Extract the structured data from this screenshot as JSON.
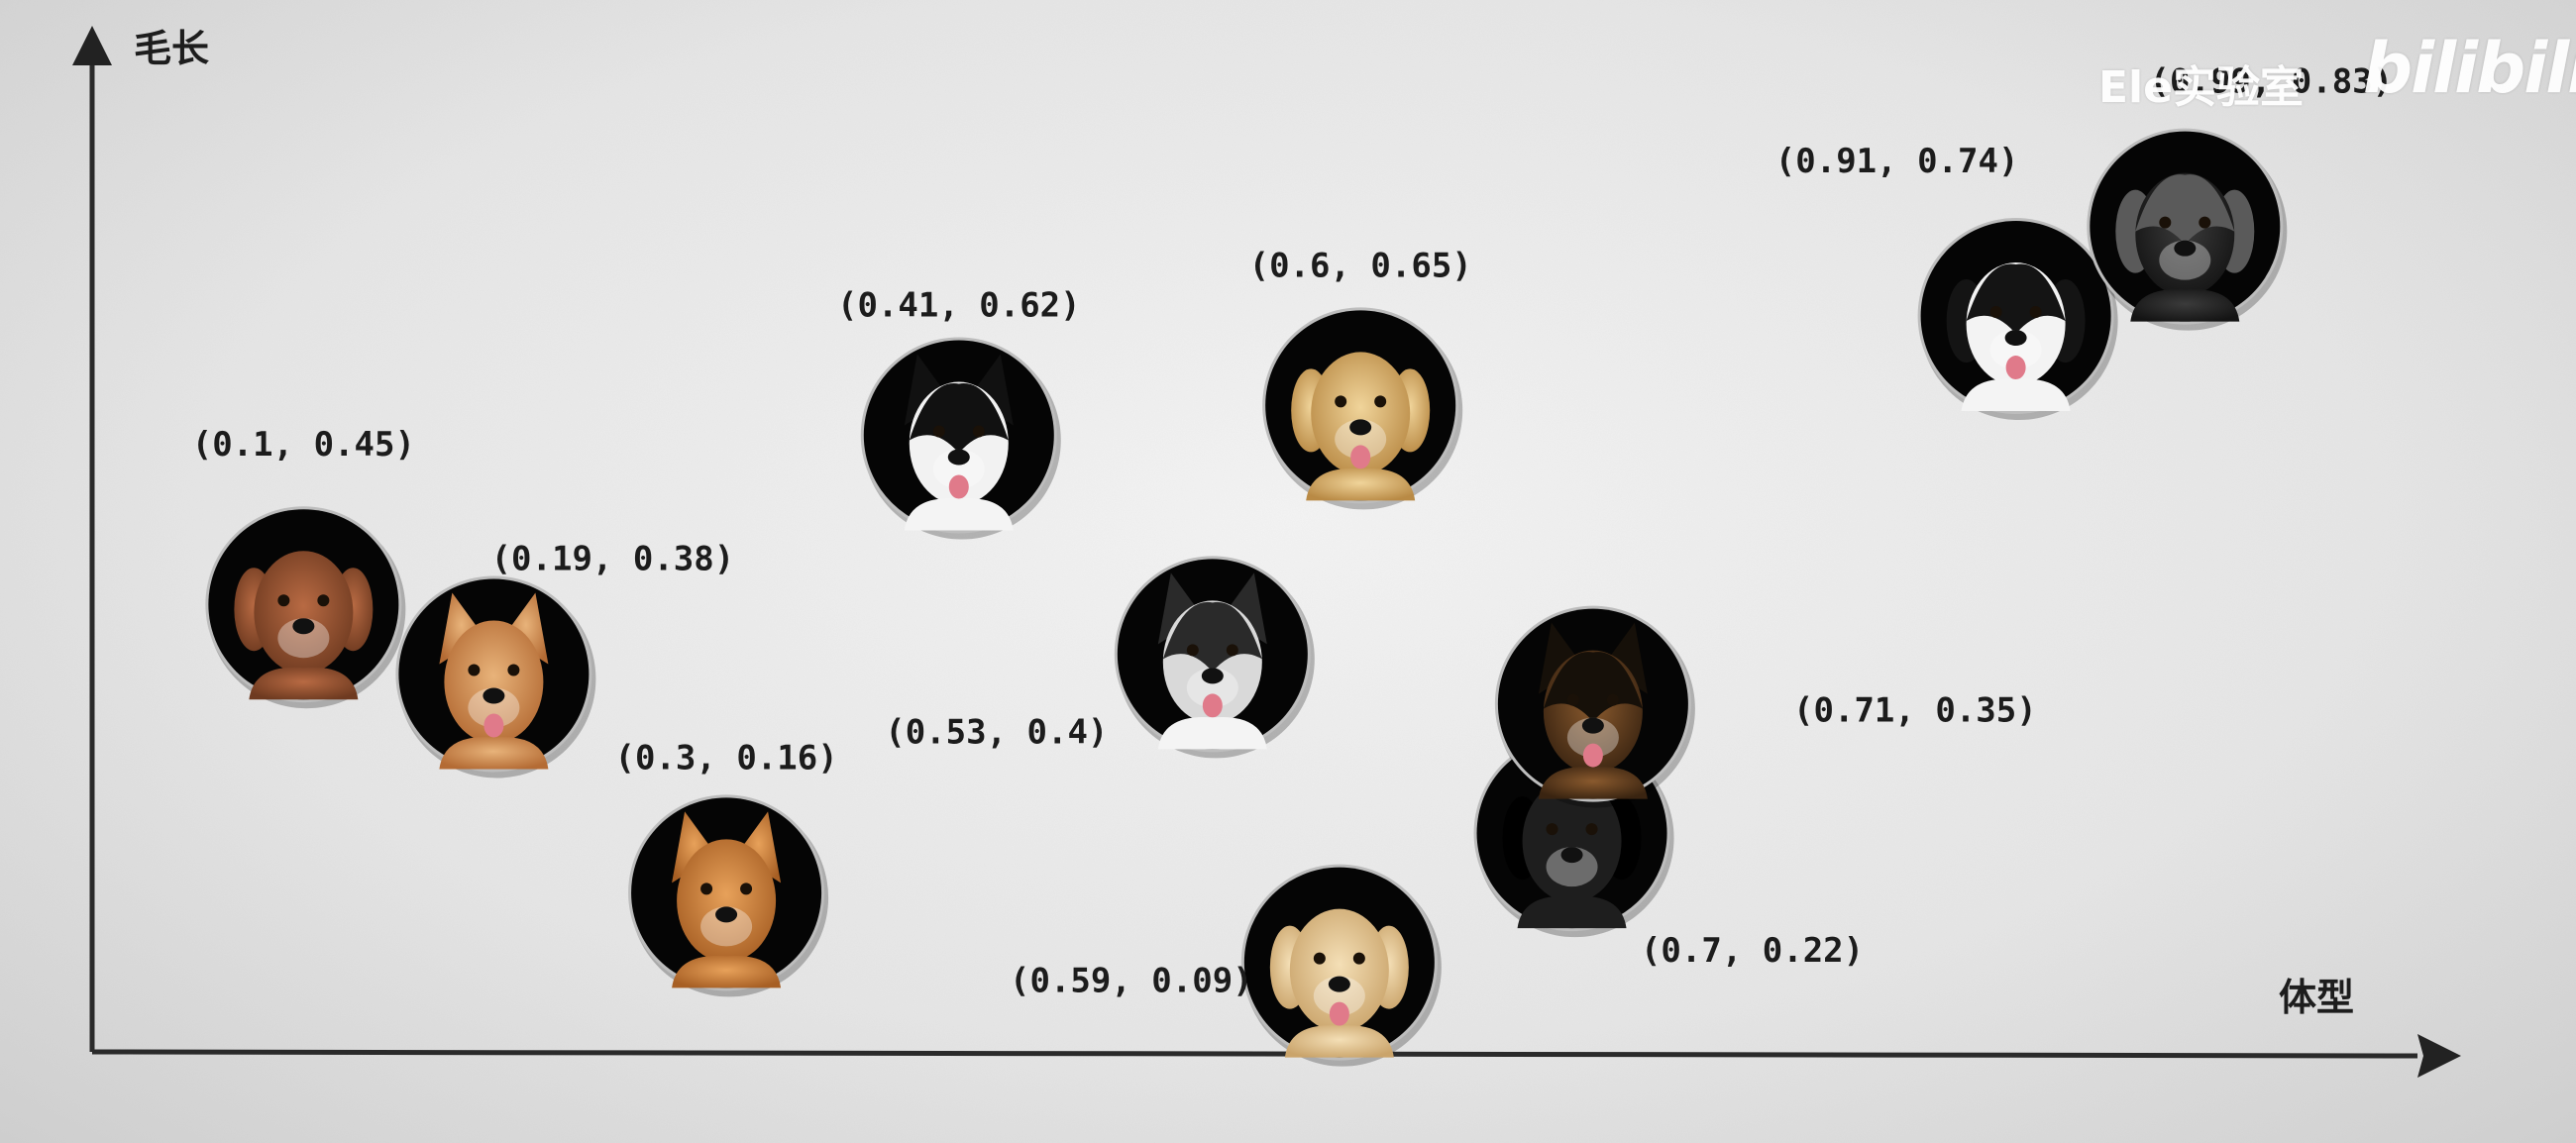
{
  "watermark": {
    "channel": "Ele实验室",
    "brand": "bilibili"
  },
  "chart_data": {
    "type": "scatter",
    "xlabel": "体型",
    "ylabel": "毛长",
    "xlim": [
      0,
      1.1
    ],
    "ylim": [
      0,
      1
    ],
    "grid": false,
    "legend": "none",
    "marker": "circular dog-face photo",
    "points": [
      {
        "x": 0.1,
        "y": 0.45,
        "label": "(0.1, 0.45)",
        "icon": "poodle-face-icon"
      },
      {
        "x": 0.19,
        "y": 0.38,
        "label": "(0.19, 0.38)",
        "icon": "corgi-face-icon"
      },
      {
        "x": 0.3,
        "y": 0.16,
        "label": "(0.3, 0.16)",
        "icon": "shiba-face-icon"
      },
      {
        "x": 0.41,
        "y": 0.62,
        "label": "(0.41, 0.62)",
        "icon": "border-collie-face-icon"
      },
      {
        "x": 0.53,
        "y": 0.4,
        "label": "(0.53, 0.4)",
        "icon": "husky-face-icon"
      },
      {
        "x": 0.59,
        "y": 0.09,
        "label": "(0.59, 0.09)",
        "icon": "labrador-face-icon"
      },
      {
        "x": 0.6,
        "y": 0.65,
        "label": "(0.6, 0.65)",
        "icon": "golden-retriever-face-icon"
      },
      {
        "x": 0.7,
        "y": 0.22,
        "label": "(0.7, 0.22)",
        "icon": "dark-dog-face-icon"
      },
      {
        "x": 0.71,
        "y": 0.35,
        "label": "(0.71, 0.35)",
        "icon": "german-shepherd-face-icon"
      },
      {
        "x": 0.91,
        "y": 0.74,
        "label": "(0.91, 0.74)",
        "icon": "bernese-face-icon"
      },
      {
        "x": 0.99,
        "y": 0.83,
        "label": "(0.99, 0.83)",
        "icon": "caucasian-shepherd-face-icon"
      }
    ]
  }
}
